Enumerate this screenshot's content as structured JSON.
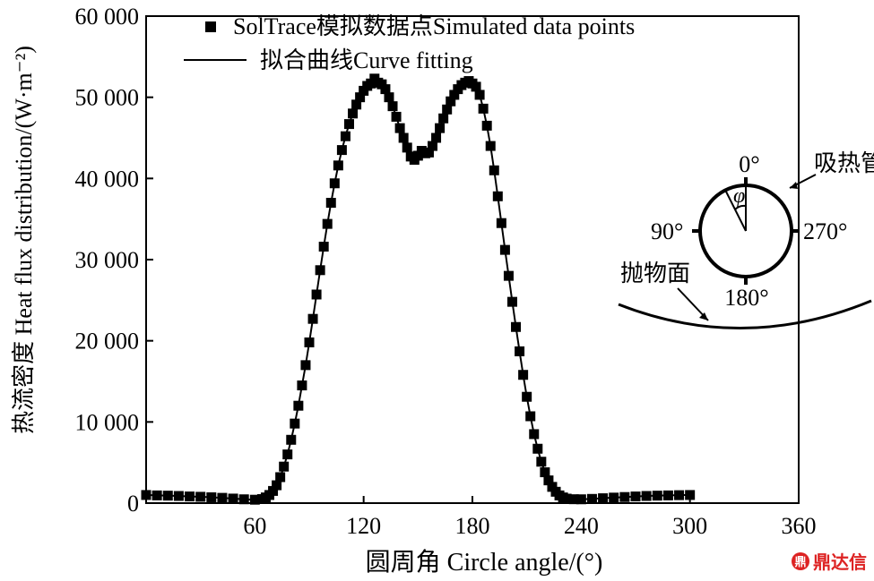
{
  "chart_data": {
    "type": "line",
    "xlabel": "圆周角 Circle angle/(°)",
    "ylabel": "热流密度 Heat flux distribution/(W·m⁻²)",
    "xlim": [
      0,
      360
    ],
    "ylim": [
      0,
      60000
    ],
    "x_ticks": [
      "60",
      "120",
      "180",
      "240",
      "300",
      "360"
    ],
    "y_ticks": [
      "0",
      "10 000",
      "20 000",
      "30 000",
      "40 000",
      "50 000",
      "60 000"
    ],
    "grid": false,
    "legend_position": "top-left",
    "series": [
      {
        "name": "SolTrace模拟数据点Simulated data points",
        "marker": "square",
        "points": [
          [
            0,
            1000
          ],
          [
            6,
            950
          ],
          [
            12,
            920
          ],
          [
            18,
            880
          ],
          [
            24,
            820
          ],
          [
            30,
            780
          ],
          [
            36,
            720
          ],
          [
            42,
            650
          ],
          [
            48,
            560
          ],
          [
            54,
            470
          ],
          [
            60,
            420
          ],
          [
            64,
            500
          ],
          [
            66,
            700
          ],
          [
            68,
            1000
          ],
          [
            70,
            1500
          ],
          [
            72,
            2200
          ],
          [
            74,
            3200
          ],
          [
            76,
            4500
          ],
          [
            78,
            6000
          ],
          [
            80,
            7800
          ],
          [
            82,
            9800
          ],
          [
            84,
            12000
          ],
          [
            86,
            14500
          ],
          [
            88,
            17000
          ],
          [
            90,
            19800
          ],
          [
            92,
            22700
          ],
          [
            94,
            25700
          ],
          [
            96,
            28700
          ],
          [
            98,
            31600
          ],
          [
            100,
            34400
          ],
          [
            102,
            37000
          ],
          [
            104,
            39400
          ],
          [
            106,
            41600
          ],
          [
            108,
            43500
          ],
          [
            110,
            45200
          ],
          [
            112,
            46700
          ],
          [
            114,
            48000
          ],
          [
            116,
            49100
          ],
          [
            118,
            50000
          ],
          [
            120,
            50800
          ],
          [
            122,
            51400
          ],
          [
            124,
            51700
          ],
          [
            126,
            52300
          ],
          [
            128,
            51800
          ],
          [
            130,
            51600
          ],
          [
            132,
            51000
          ],
          [
            134,
            50000
          ],
          [
            136,
            48900
          ],
          [
            138,
            47600
          ],
          [
            140,
            46200
          ],
          [
            142,
            45000
          ],
          [
            144,
            43800
          ],
          [
            146,
            42700
          ],
          [
            148,
            42300
          ],
          [
            150,
            42800
          ],
          [
            152,
            43400
          ],
          [
            154,
            43100
          ],
          [
            156,
            43200
          ],
          [
            158,
            44000
          ],
          [
            160,
            45000
          ],
          [
            162,
            46200
          ],
          [
            164,
            47400
          ],
          [
            166,
            48500
          ],
          [
            168,
            49500
          ],
          [
            170,
            50300
          ],
          [
            172,
            51000
          ],
          [
            174,
            51500
          ],
          [
            176,
            51800
          ],
          [
            178,
            52000
          ],
          [
            180,
            51700
          ],
          [
            182,
            51300
          ],
          [
            184,
            50300
          ],
          [
            186,
            48600
          ],
          [
            188,
            46500
          ],
          [
            190,
            44000
          ],
          [
            192,
            41000
          ],
          [
            194,
            37800
          ],
          [
            196,
            34500
          ],
          [
            198,
            31200
          ],
          [
            200,
            28000
          ],
          [
            202,
            24800
          ],
          [
            204,
            21700
          ],
          [
            206,
            18700
          ],
          [
            208,
            15800
          ],
          [
            210,
            13100
          ],
          [
            212,
            10700
          ],
          [
            214,
            8500
          ],
          [
            216,
            6700
          ],
          [
            218,
            5100
          ],
          [
            220,
            3800
          ],
          [
            222,
            2800
          ],
          [
            224,
            2000
          ],
          [
            226,
            1400
          ],
          [
            228,
            950
          ],
          [
            230,
            700
          ],
          [
            232,
            550
          ],
          [
            236,
            480
          ],
          [
            240,
            470
          ],
          [
            246,
            520
          ],
          [
            252,
            600
          ],
          [
            258,
            680
          ],
          [
            264,
            750
          ],
          [
            270,
            820
          ],
          [
            276,
            880
          ],
          [
            282,
            920
          ],
          [
            288,
            950
          ],
          [
            294,
            980
          ],
          [
            300,
            1000
          ]
        ]
      },
      {
        "name": "拟合曲线Curve fitting",
        "marker": "line"
      }
    ],
    "inset": {
      "labels": {
        "top": "0°",
        "left": "90°",
        "right": "270°",
        "bottom": "180°",
        "phi": "φ",
        "tube": "吸热管",
        "mirror": "抛物面"
      }
    }
  },
  "watermark": {
    "icon": "鼎",
    "text": "鼎达信"
  }
}
